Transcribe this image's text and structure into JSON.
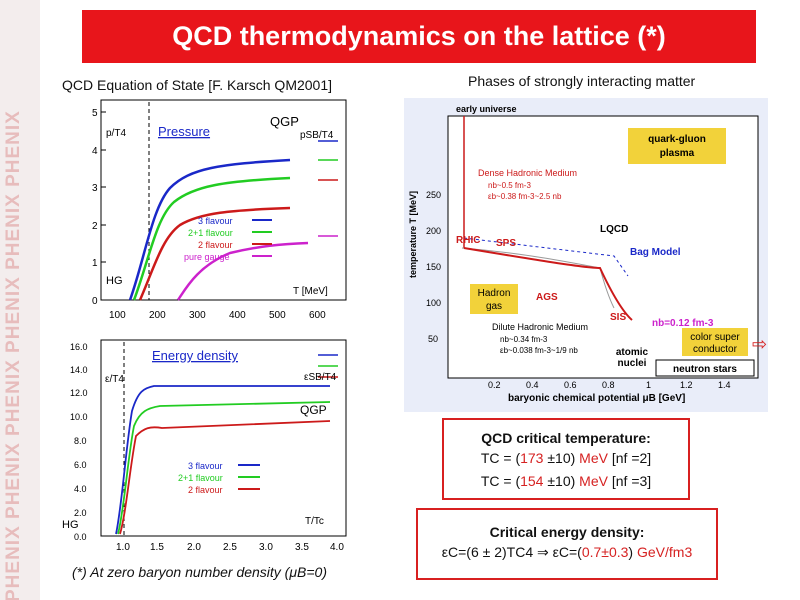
{
  "side_watermark": {
    "text": "PHENIX  PHENIX  PHENIX  PHENIX  PHENIX  PHENIX"
  },
  "title": "QCD thermodynamics on the lattice (*)",
  "eos_caption": "QCD Equation of State [F. Karsch QM2001]",
  "phases_caption": "Phases of strongly interacting matter",
  "colors": {
    "title_bg": "#e8151b",
    "flavour3": "#1a28c8",
    "flavour21": "#22cc22",
    "flavour2": "#cc1a1a",
    "pure_gauge": "#cc22cc",
    "phase_bg": "#e9edf9",
    "qgp_box": "#f2d23a",
    "label_box": "#f2d23a"
  },
  "pressure_plot": {
    "ylabel": "p/T4",
    "series_title": "Pressure",
    "qgp_label": "QGP",
    "sb_label": "pSB/T4",
    "hg_label": "HG",
    "xlabel": "T [MeV]",
    "y_ticks": [
      "0",
      "1",
      "2",
      "3",
      "4",
      "5"
    ],
    "x_ticks": [
      "100",
      "200",
      "300",
      "400",
      "500",
      "600"
    ],
    "legend": [
      "3 flavour",
      "2+1 flavour",
      "2 flavour",
      "pure gauge"
    ]
  },
  "energy_plot": {
    "ylabel": "ε/T4",
    "series_title": "Energy density",
    "sb_label": "εSB/T4",
    "qgp_label": "QGP",
    "hg_label": "HG",
    "xlabel": "T/Tc",
    "y_ticks": [
      "0.0",
      "2.0",
      "4.0",
      "6.0",
      "8.0",
      "10.0",
      "12.0",
      "14.0",
      "16.0"
    ],
    "x_ticks": [
      "1.0",
      "1.5",
      "2.0",
      "2.5",
      "3.0",
      "3.5",
      "4.0"
    ],
    "legend": [
      "3 flavour",
      "2+1 flavour",
      "2 flavour"
    ]
  },
  "phase_diagram": {
    "early_universe": "early universe",
    "qgp_box": [
      "quark-gluon",
      "plasma"
    ],
    "dense_medium": [
      "Dense Hadronic Medium",
      "nb~0.5 fm-3",
      "εb~0.38 fm-3~2.5 nb"
    ],
    "lqcd": "LQCD",
    "rhic": "RHIC",
    "sps": "SPS",
    "bag_model": "Bag Model",
    "hadron_gas": [
      "Hadron",
      "gas"
    ],
    "ags": "AGS",
    "sis": "SIS",
    "dilute_medium": [
      "Dilute Hadronic Medium",
      "nb~0.34 fm-3",
      "εb~0.038 fm-3~1/9 nb"
    ],
    "nb_label": "nb=0.12 fm-3",
    "color_super": [
      "color super",
      "conductor"
    ],
    "atomic_nuclei": [
      "atomic",
      "nuclei"
    ],
    "neutron_stars": "neutron stars",
    "ylabel": "temperature T [MeV]",
    "xlabel": "baryonic chemical potential μB [GeV]",
    "y_ticks": [
      "50",
      "100",
      "150",
      "200",
      "250"
    ],
    "x_ticks": [
      "0.2",
      "0.4",
      "0.6",
      "0.8",
      "1",
      "1.2",
      "1.4"
    ]
  },
  "tc_box": {
    "heading": "QCD critical temperature:",
    "line1_prefix": "TC = (",
    "line1_value": "173",
    "line1_err": " ±10) ",
    "line1_unit": "MeV",
    "line1_suffix": " [nf =2]",
    "line2_prefix": "TC = (",
    "line2_value": "154",
    "line2_err": " ±10) ",
    "line2_unit": "MeV",
    "line2_suffix": " [nf =3]"
  },
  "ec_box": {
    "heading": "Critical energy density:",
    "formula_left": "εC=(6 ± 2)TC4  ⇒ εC=(",
    "formula_value": "0.7±0.3",
    "formula_close": ") ",
    "formula_unit": "GeV/fm3"
  },
  "footnote": "(*) At zero baryon number density (μB=0)"
}
